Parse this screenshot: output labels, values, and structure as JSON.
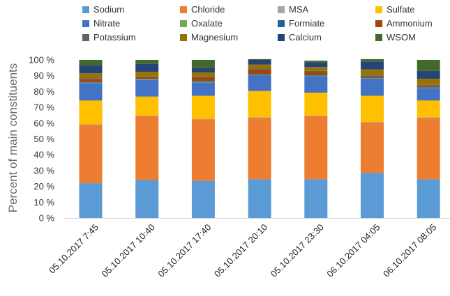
{
  "chart_data": {
    "type": "bar",
    "stacked": true,
    "ylabel": "Percent of main constituents",
    "xlabel": "",
    "title": "",
    "ylim": [
      0,
      100
    ],
    "y_ticks": [
      "0 %",
      "10 %",
      "20 %",
      "30 %",
      "40 %",
      "50 %",
      "60 %",
      "70 %",
      "80 %",
      "90 %",
      "100 %"
    ],
    "y_tick_values": [
      0,
      10,
      20,
      30,
      40,
      50,
      60,
      70,
      80,
      90,
      100
    ],
    "grid": false,
    "legend_position": "top",
    "categories": [
      "05.10.2017 7:45",
      "05.10.2017 10:40",
      "05.10.2017 17:40",
      "05.10.2017 20:10",
      "05.10.2017 23:30",
      "06.10.2017 04:05",
      "06.10.2017 08:05"
    ],
    "series": [
      {
        "name": "Sodium",
        "color": "#5B9BD5",
        "values": [
          22,
          24,
          23.5,
          24.5,
          24.5,
          28.5,
          24.5
        ]
      },
      {
        "name": "Chloride",
        "color": "#ED7D31",
        "values": [
          37,
          40.5,
          39,
          39,
          40,
          32,
          39
        ]
      },
      {
        "name": "MSA",
        "color": "#A5A5A5",
        "values": [
          0.3,
          0.3,
          0.3,
          0.3,
          0.3,
          0.3,
          0.3
        ]
      },
      {
        "name": "Sulfate",
        "color": "#FFC000",
        "values": [
          15,
          12,
          14.5,
          16.5,
          14.5,
          16.5,
          10.5
        ]
      },
      {
        "name": "Nitrate",
        "color": "#4472C4",
        "values": [
          11,
          10.5,
          8.5,
          10,
          10.5,
          11,
          8
        ]
      },
      {
        "name": "Oxalate",
        "color": "#70AD47",
        "values": [
          0.3,
          0.3,
          0.3,
          0.3,
          0.3,
          0.3,
          0.3
        ]
      },
      {
        "name": "Formiate",
        "color": "#255E91",
        "values": [
          0.4,
          0.4,
          0.4,
          0.4,
          0.4,
          0.4,
          0.4
        ]
      },
      {
        "name": "Ammonium",
        "color": "#9E480E",
        "values": [
          2,
          1,
          2.5,
          3,
          2,
          1,
          1
        ]
      },
      {
        "name": "Potassium",
        "color": "#636363",
        "values": [
          0.5,
          0.5,
          0.5,
          0.5,
          0.5,
          0.5,
          0.5
        ]
      },
      {
        "name": "Magnesium",
        "color": "#997300",
        "values": [
          3,
          3,
          2.5,
          2.5,
          2.5,
          3.5,
          3.5
        ]
      },
      {
        "name": "Calcium",
        "color": "#264478",
        "values": [
          5,
          5,
          3,
          3,
          3,
          5,
          5
        ]
      },
      {
        "name": "WSOM",
        "color": "#43682B",
        "values": [
          3.5,
          2.5,
          5,
          0.5,
          1,
          1.5,
          7
        ]
      }
    ]
  }
}
